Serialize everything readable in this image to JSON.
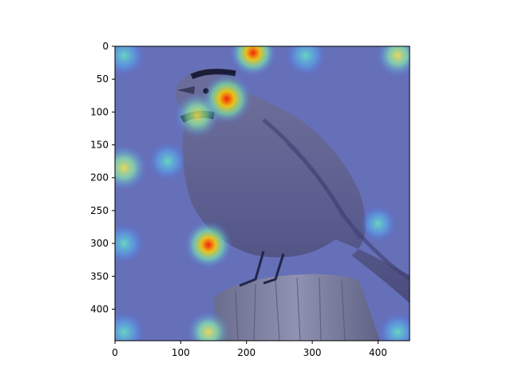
{
  "figure": {
    "image_description": "attention heatmap over photo of a horned lark perched on a wooden post",
    "x_axis": {
      "ticks": [
        "0",
        "100",
        "200",
        "300",
        "400"
      ],
      "tick_values": [
        0,
        100,
        200,
        300,
        400
      ],
      "range": [
        0,
        448
      ]
    },
    "y_axis": {
      "ticks": [
        "0",
        "50",
        "100",
        "150",
        "200",
        "250",
        "300",
        "350",
        "400"
      ],
      "tick_values": [
        0,
        50,
        100,
        150,
        200,
        250,
        300,
        350,
        400
      ],
      "range": [
        0,
        448
      ],
      "inverted": true
    },
    "colormap": "jet",
    "colors": {
      "background": "#6670b8",
      "bird_body": "#5b5f94",
      "post": "#7d80a0",
      "hot": "#ff2a00",
      "warm": "#ffe84a",
      "cool": "#66f0c0"
    },
    "hotspots": [
      {
        "x": 14,
        "y": 14,
        "level": 0.55
      },
      {
        "x": 210,
        "y": 10,
        "level": 0.85
      },
      {
        "x": 290,
        "y": 14,
        "level": 0.55
      },
      {
        "x": 430,
        "y": 14,
        "level": 0.6
      },
      {
        "x": 170,
        "y": 80,
        "level": 1.0
      },
      {
        "x": 125,
        "y": 105,
        "level": 0.75
      },
      {
        "x": 14,
        "y": 185,
        "level": 0.75
      },
      {
        "x": 80,
        "y": 175,
        "level": 0.45
      },
      {
        "x": 400,
        "y": 270,
        "level": 0.35
      },
      {
        "x": 14,
        "y": 300,
        "level": 0.5
      },
      {
        "x": 142,
        "y": 302,
        "level": 0.9
      },
      {
        "x": 14,
        "y": 435,
        "level": 0.55
      },
      {
        "x": 142,
        "y": 435,
        "level": 0.6
      },
      {
        "x": 430,
        "y": 435,
        "level": 0.45
      }
    ]
  }
}
